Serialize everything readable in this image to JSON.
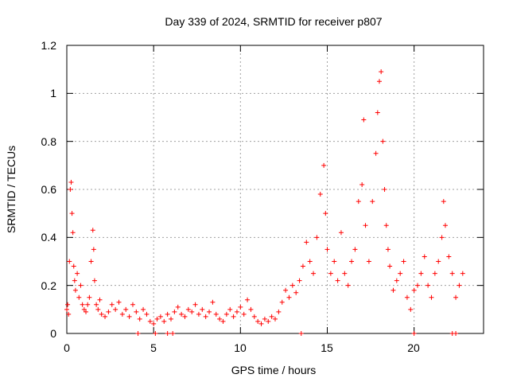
{
  "chart_data": {
    "type": "scatter",
    "title": "Day 339 of 2024, SRMTID for receiver p807",
    "xlabel": "GPS time / hours",
    "ylabel": "SRMTID / TECUs",
    "xlim": [
      0,
      24
    ],
    "ylim": [
      0,
      1.2
    ],
    "x_ticks": [
      "0",
      "5",
      "10",
      "15",
      "20"
    ],
    "y_ticks": [
      "0",
      "0.2",
      "0.4",
      "0.6",
      "0.8",
      "1",
      "1.2"
    ],
    "grid": true,
    "marker": "+",
    "series": [
      {
        "name": "p807",
        "color": "#ff0000",
        "points": [
          [
            0.0,
            0.1
          ],
          [
            0.05,
            0.12
          ],
          [
            0.1,
            0.08
          ],
          [
            0.15,
            0.3
          ],
          [
            0.2,
            0.6
          ],
          [
            0.25,
            0.63
          ],
          [
            0.3,
            0.5
          ],
          [
            0.35,
            0.42
          ],
          [
            0.4,
            0.28
          ],
          [
            0.45,
            0.22
          ],
          [
            0.5,
            0.18
          ],
          [
            0.6,
            0.25
          ],
          [
            0.7,
            0.15
          ],
          [
            0.8,
            0.2
          ],
          [
            0.9,
            0.12
          ],
          [
            1.0,
            0.1
          ],
          [
            1.1,
            0.09
          ],
          [
            1.2,
            0.12
          ],
          [
            1.3,
            0.15
          ],
          [
            1.4,
            0.3
          ],
          [
            1.5,
            0.43
          ],
          [
            1.55,
            0.35
          ],
          [
            1.6,
            0.22
          ],
          [
            1.7,
            0.12
          ],
          [
            1.8,
            0.1
          ],
          [
            1.9,
            0.14
          ],
          [
            2.0,
            0.08
          ],
          [
            2.2,
            0.07
          ],
          [
            2.4,
            0.09
          ],
          [
            2.6,
            0.12
          ],
          [
            2.8,
            0.1
          ],
          [
            3.0,
            0.13
          ],
          [
            3.2,
            0.08
          ],
          [
            3.4,
            0.1
          ],
          [
            3.6,
            0.07
          ],
          [
            3.8,
            0.12
          ],
          [
            4.0,
            0.09
          ],
          [
            4.2,
            0.06
          ],
          [
            4.4,
            0.1
          ],
          [
            4.6,
            0.08
          ],
          [
            4.8,
            0.05
          ],
          [
            5.0,
            0.04
          ],
          [
            5.2,
            0.06
          ],
          [
            5.4,
            0.07
          ],
          [
            5.6,
            0.05
          ],
          [
            5.8,
            0.08
          ],
          [
            6.0,
            0.06
          ],
          [
            6.2,
            0.09
          ],
          [
            6.4,
            0.11
          ],
          [
            6.6,
            0.08
          ],
          [
            6.8,
            0.07
          ],
          [
            7.0,
            0.1
          ],
          [
            7.2,
            0.09
          ],
          [
            7.4,
            0.12
          ],
          [
            7.6,
            0.08
          ],
          [
            7.8,
            0.1
          ],
          [
            8.0,
            0.07
          ],
          [
            8.2,
            0.09
          ],
          [
            8.4,
            0.13
          ],
          [
            8.6,
            0.08
          ],
          [
            8.8,
            0.06
          ],
          [
            9.0,
            0.05
          ],
          [
            9.2,
            0.08
          ],
          [
            9.4,
            0.1
          ],
          [
            9.6,
            0.07
          ],
          [
            9.8,
            0.09
          ],
          [
            10.0,
            0.11
          ],
          [
            10.2,
            0.08
          ],
          [
            10.4,
            0.14
          ],
          [
            10.6,
            0.1
          ],
          [
            10.8,
            0.07
          ],
          [
            11.0,
            0.05
          ],
          [
            11.2,
            0.04
          ],
          [
            11.4,
            0.06
          ],
          [
            11.6,
            0.05
          ],
          [
            11.8,
            0.07
          ],
          [
            12.0,
            0.06
          ],
          [
            12.2,
            0.09
          ],
          [
            12.4,
            0.13
          ],
          [
            12.6,
            0.18
          ],
          [
            12.8,
            0.15
          ],
          [
            13.0,
            0.2
          ],
          [
            13.2,
            0.17
          ],
          [
            13.4,
            0.22
          ],
          [
            13.6,
            0.28
          ],
          [
            13.8,
            0.38
          ],
          [
            14.0,
            0.3
          ],
          [
            14.2,
            0.25
          ],
          [
            14.4,
            0.4
          ],
          [
            14.6,
            0.58
          ],
          [
            14.8,
            0.7
          ],
          [
            14.9,
            0.5
          ],
          [
            15.0,
            0.35
          ],
          [
            15.2,
            0.25
          ],
          [
            15.4,
            0.3
          ],
          [
            15.6,
            0.22
          ],
          [
            15.8,
            0.42
          ],
          [
            16.0,
            0.25
          ],
          [
            16.2,
            0.2
          ],
          [
            16.4,
            0.3
          ],
          [
            16.6,
            0.35
          ],
          [
            16.8,
            0.55
          ],
          [
            17.0,
            0.62
          ],
          [
            17.1,
            0.89
          ],
          [
            17.2,
            0.45
          ],
          [
            17.4,
            0.3
          ],
          [
            17.6,
            0.55
          ],
          [
            17.8,
            0.75
          ],
          [
            17.9,
            0.92
          ],
          [
            18.0,
            1.05
          ],
          [
            18.1,
            1.09
          ],
          [
            18.2,
            0.8
          ],
          [
            18.3,
            0.6
          ],
          [
            18.4,
            0.45
          ],
          [
            18.5,
            0.35
          ],
          [
            18.6,
            0.28
          ],
          [
            18.8,
            0.18
          ],
          [
            19.0,
            0.22
          ],
          [
            19.2,
            0.25
          ],
          [
            19.4,
            0.3
          ],
          [
            19.6,
            0.15
          ],
          [
            19.8,
            0.1
          ],
          [
            20.0,
            0.18
          ],
          [
            20.2,
            0.2
          ],
          [
            20.4,
            0.25
          ],
          [
            20.6,
            0.32
          ],
          [
            20.8,
            0.2
          ],
          [
            21.0,
            0.15
          ],
          [
            21.2,
            0.25
          ],
          [
            21.4,
            0.3
          ],
          [
            21.6,
            0.4
          ],
          [
            21.7,
            0.55
          ],
          [
            21.8,
            0.45
          ],
          [
            22.0,
            0.32
          ],
          [
            22.2,
            0.25
          ],
          [
            22.4,
            0.15
          ],
          [
            22.6,
            0.2
          ],
          [
            22.8,
            0.25
          ],
          [
            4.1,
            0.0
          ],
          [
            5.1,
            0.0
          ],
          [
            5.8,
            0.0
          ],
          [
            6.1,
            0.0
          ],
          [
            13.5,
            0.0
          ],
          [
            20.0,
            0.0
          ],
          [
            22.2,
            0.0
          ],
          [
            22.4,
            0.0
          ]
        ]
      }
    ]
  }
}
